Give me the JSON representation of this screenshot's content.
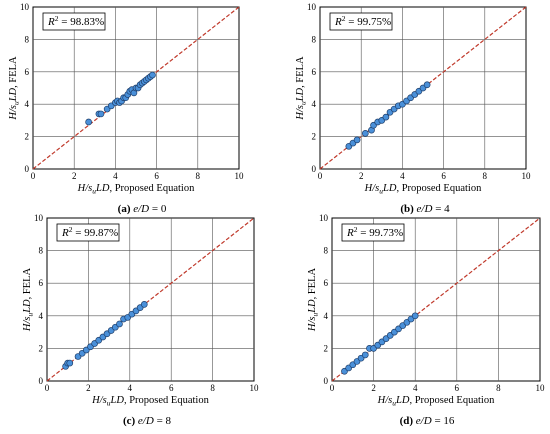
{
  "chart_data": [
    {
      "type": "scatter",
      "r2_label": "R² = 98.83%",
      "caption": "(a) e/D = 0",
      "xlabel": "H/suLD, Proposed Equation",
      "ylabel": "H/suLD, FELA",
      "xlim": [
        0,
        10
      ],
      "ylim": [
        0,
        10
      ],
      "ticks": [
        "0",
        "2",
        "4",
        "6",
        "8",
        "10"
      ],
      "x": [
        2.7,
        3.2,
        3.3,
        3.6,
        3.8,
        4.0,
        4.1,
        4.2,
        4.3,
        4.4,
        4.5,
        4.6,
        4.7,
        4.8,
        4.9,
        5.0,
        5.1,
        5.2,
        5.3,
        5.4,
        5.5,
        5.6,
        5.7,
        5.8
      ],
      "y": [
        2.9,
        3.4,
        3.4,
        3.7,
        3.9,
        4.1,
        4.2,
        4.1,
        4.2,
        4.4,
        4.4,
        4.6,
        4.8,
        4.9,
        4.7,
        5.0,
        5.0,
        5.2,
        5.3,
        5.4,
        5.5,
        5.6,
        5.7,
        5.8
      ]
    },
    {
      "type": "scatter",
      "r2_label": "R² = 99.75%",
      "caption": "(b) e/D = 4",
      "xlabel": "H/suLD, Proposed Equation",
      "ylabel": "H/suLD, FELA",
      "xlim": [
        0,
        10
      ],
      "ylim": [
        0,
        10
      ],
      "ticks": [
        "0",
        "2",
        "4",
        "6",
        "8",
        "10"
      ],
      "x": [
        1.4,
        1.6,
        1.8,
        2.2,
        2.5,
        2.6,
        2.8,
        3.0,
        3.2,
        3.4,
        3.6,
        3.8,
        4.0,
        4.2,
        4.4,
        4.6,
        4.8,
        5.0,
        5.2
      ],
      "y": [
        1.4,
        1.6,
        1.8,
        2.2,
        2.4,
        2.7,
        2.9,
        3.0,
        3.2,
        3.5,
        3.7,
        3.9,
        4.0,
        4.2,
        4.4,
        4.6,
        4.8,
        5.0,
        5.2
      ]
    },
    {
      "type": "scatter",
      "r2_label": "R² = 99.87%",
      "caption": "(c) e/D = 8",
      "xlabel": "H/suLD, Proposed Equation",
      "ylabel": "H/suLD, FELA",
      "xlim": [
        0,
        10
      ],
      "ylim": [
        0,
        10
      ],
      "ticks": [
        "0",
        "2",
        "4",
        "6",
        "8",
        "10"
      ],
      "x": [
        0.9,
        1.0,
        1.1,
        1.5,
        1.7,
        1.9,
        2.1,
        2.3,
        2.5,
        2.7,
        2.9,
        3.1,
        3.3,
        3.5,
        3.7,
        3.9,
        4.1,
        4.3,
        4.5,
        4.7
      ],
      "y": [
        0.9,
        1.1,
        1.1,
        1.5,
        1.7,
        1.9,
        2.1,
        2.3,
        2.5,
        2.7,
        2.9,
        3.1,
        3.3,
        3.5,
        3.8,
        3.9,
        4.1,
        4.3,
        4.5,
        4.7
      ]
    },
    {
      "type": "scatter",
      "r2_label": "R² = 99.73%",
      "caption": "(d) e/D = 16",
      "xlabel": "H/suLD, Proposed Equation",
      "ylabel": "H/suLD, FELA",
      "xlim": [
        0,
        10
      ],
      "ylim": [
        0,
        10
      ],
      "ticks": [
        "0",
        "2",
        "4",
        "6",
        "8",
        "10"
      ],
      "x": [
        0.6,
        0.8,
        1.0,
        1.2,
        1.4,
        1.6,
        1.8,
        2.0,
        2.2,
        2.4,
        2.6,
        2.8,
        3.0,
        3.2,
        3.4,
        3.6,
        3.8,
        4.0
      ],
      "y": [
        0.6,
        0.8,
        1.0,
        1.2,
        1.4,
        1.6,
        2.0,
        2.0,
        2.2,
        2.4,
        2.6,
        2.8,
        3.0,
        3.2,
        3.4,
        3.6,
        3.8,
        4.0
      ]
    }
  ]
}
